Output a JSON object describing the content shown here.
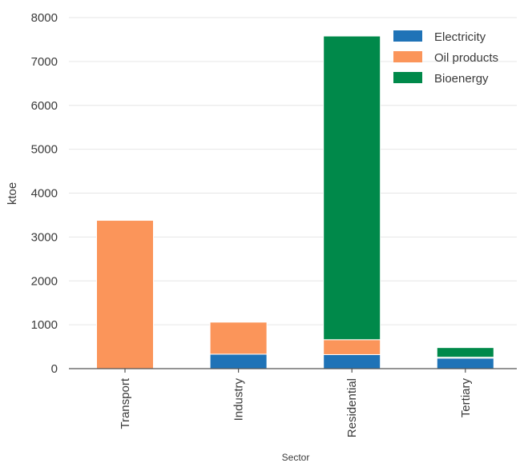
{
  "chart_data": {
    "type": "bar",
    "stacked": true,
    "categories": [
      "Transport",
      "Industry",
      "Residential",
      "Tertiary"
    ],
    "series": [
      {
        "name": "Electricity",
        "color": "#1f73b7",
        "values": [
          0,
          330,
          320,
          240
        ]
      },
      {
        "name": "Oil products",
        "color": "#fb955a",
        "values": [
          3380,
          730,
          340,
          20
        ]
      },
      {
        "name": "Bioenergy",
        "color": "#00894a",
        "values": [
          0,
          0,
          6920,
          220
        ]
      }
    ],
    "xlabel": "Sector",
    "ylabel": "ktoe",
    "ylim": [
      0,
      8000
    ],
    "yticks": [
      0,
      1000,
      2000,
      3000,
      4000,
      5000,
      6000,
      7000,
      8000
    ],
    "grid": "horizontal",
    "legend_position": "top-right"
  }
}
